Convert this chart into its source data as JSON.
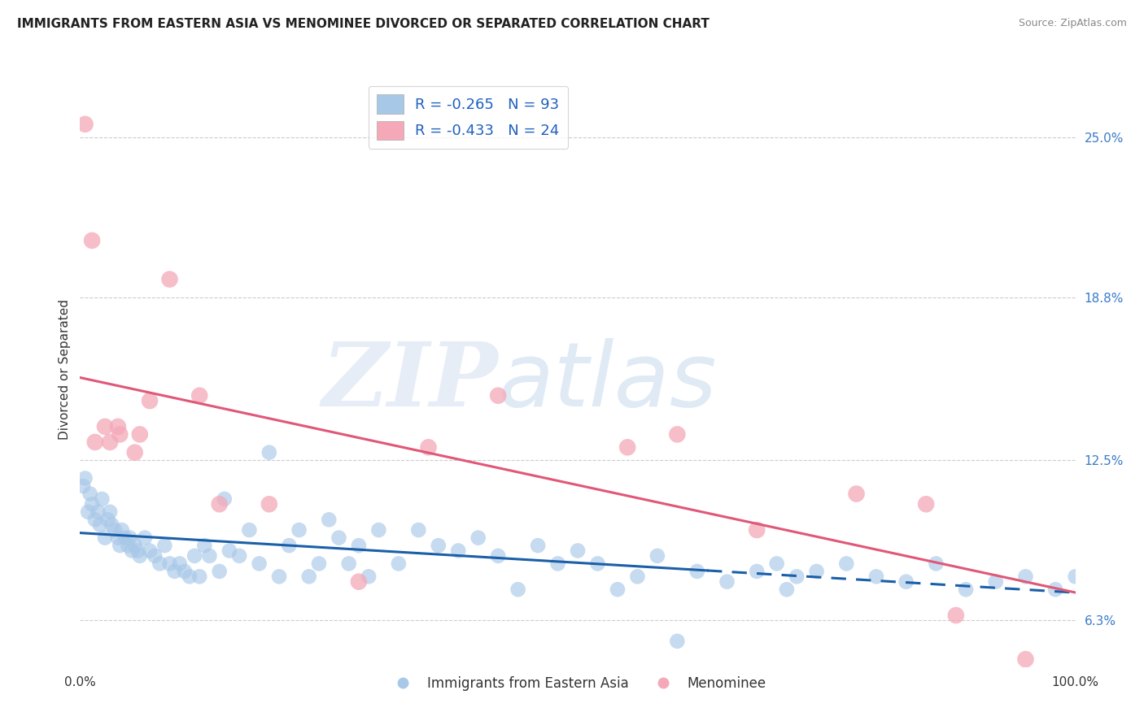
{
  "title": "IMMIGRANTS FROM EASTERN ASIA VS MENOMINEE DIVORCED OR SEPARATED CORRELATION CHART",
  "source": "Source: ZipAtlas.com",
  "ylabel": "Divorced or Separated",
  "legend_blue_label": "Immigrants from Eastern Asia",
  "legend_pink_label": "Menominee",
  "R_blue": "-0.265",
  "N_blue": "93",
  "R_pink": "-0.433",
  "N_pink": "24",
  "blue_color": "#a8c8e8",
  "pink_color": "#f4a8b8",
  "blue_line_color": "#1a5fa8",
  "pink_line_color": "#e05878",
  "watermark_zip": "ZIP",
  "watermark_atlas": "atlas",
  "background_color": "#ffffff",
  "blue_scatter_x": [
    0.3,
    0.5,
    0.8,
    1.0,
    1.2,
    1.5,
    1.8,
    2.0,
    2.2,
    2.5,
    2.8,
    3.0,
    3.2,
    3.5,
    3.8,
    4.0,
    4.2,
    4.5,
    4.8,
    5.0,
    5.2,
    5.5,
    5.8,
    6.0,
    6.5,
    7.0,
    7.5,
    8.0,
    8.5,
    9.0,
    9.5,
    10.0,
    10.5,
    11.0,
    11.5,
    12.0,
    12.5,
    13.0,
    14.0,
    14.5,
    15.0,
    16.0,
    17.0,
    18.0,
    19.0,
    20.0,
    21.0,
    22.0,
    23.0,
    24.0,
    25.0,
    26.0,
    27.0,
    28.0,
    29.0,
    30.0,
    32.0,
    34.0,
    36.0,
    38.0,
    40.0,
    42.0,
    44.0,
    46.0,
    48.0,
    50.0,
    52.0,
    54.0,
    56.0,
    58.0,
    60.0,
    62.0,
    65.0,
    68.0,
    70.0,
    71.0,
    72.0,
    74.0,
    77.0,
    80.0,
    83.0,
    86.0,
    89.0,
    92.0,
    95.0,
    98.0,
    100.0
  ],
  "blue_scatter_y": [
    11.5,
    11.8,
    10.5,
    11.2,
    10.8,
    10.2,
    10.5,
    10.0,
    11.0,
    9.5,
    10.2,
    10.5,
    10.0,
    9.8,
    9.5,
    9.2,
    9.8,
    9.5,
    9.2,
    9.5,
    9.0,
    9.2,
    9.0,
    8.8,
    9.5,
    9.0,
    8.8,
    8.5,
    9.2,
    8.5,
    8.2,
    8.5,
    8.2,
    8.0,
    8.8,
    8.0,
    9.2,
    8.8,
    8.2,
    11.0,
    9.0,
    8.8,
    9.8,
    8.5,
    12.8,
    8.0,
    9.2,
    9.8,
    8.0,
    8.5,
    10.2,
    9.5,
    8.5,
    9.2,
    8.0,
    9.8,
    8.5,
    9.8,
    9.2,
    9.0,
    9.5,
    8.8,
    7.5,
    9.2,
    8.5,
    9.0,
    8.5,
    7.5,
    8.0,
    8.8,
    5.5,
    8.2,
    7.8,
    8.2,
    8.5,
    7.5,
    8.0,
    8.2,
    8.5,
    8.0,
    7.8,
    8.5,
    7.5,
    7.8,
    8.0,
    7.5,
    8.0
  ],
  "pink_scatter_x": [
    0.5,
    1.2,
    2.5,
    3.0,
    4.0,
    5.5,
    7.0,
    9.0,
    12.0,
    14.0,
    19.0,
    28.0,
    35.0,
    42.0,
    55.0,
    60.0,
    68.0,
    78.0,
    85.0,
    88.0,
    95.0,
    1.5,
    3.8,
    6.0
  ],
  "pink_scatter_y": [
    25.5,
    21.0,
    13.8,
    13.2,
    13.5,
    12.8,
    14.8,
    19.5,
    15.0,
    10.8,
    10.8,
    7.8,
    13.0,
    15.0,
    13.0,
    13.5,
    9.8,
    11.2,
    10.8,
    6.5,
    4.8,
    13.2,
    13.8,
    13.5
  ],
  "xlim": [
    0,
    100
  ],
  "ylim": [
    4.5,
    27.5
  ],
  "yticks_right": [
    6.3,
    12.5,
    18.8,
    25.0
  ],
  "ytick_labels_right": [
    "6.3%",
    "12.5%",
    "18.8%",
    "25.0%"
  ],
  "blue_line_start_x": 0,
  "blue_line_end_x": 100,
  "blue_solid_end": 63,
  "pink_line_start_x": 0,
  "pink_line_end_x": 100
}
